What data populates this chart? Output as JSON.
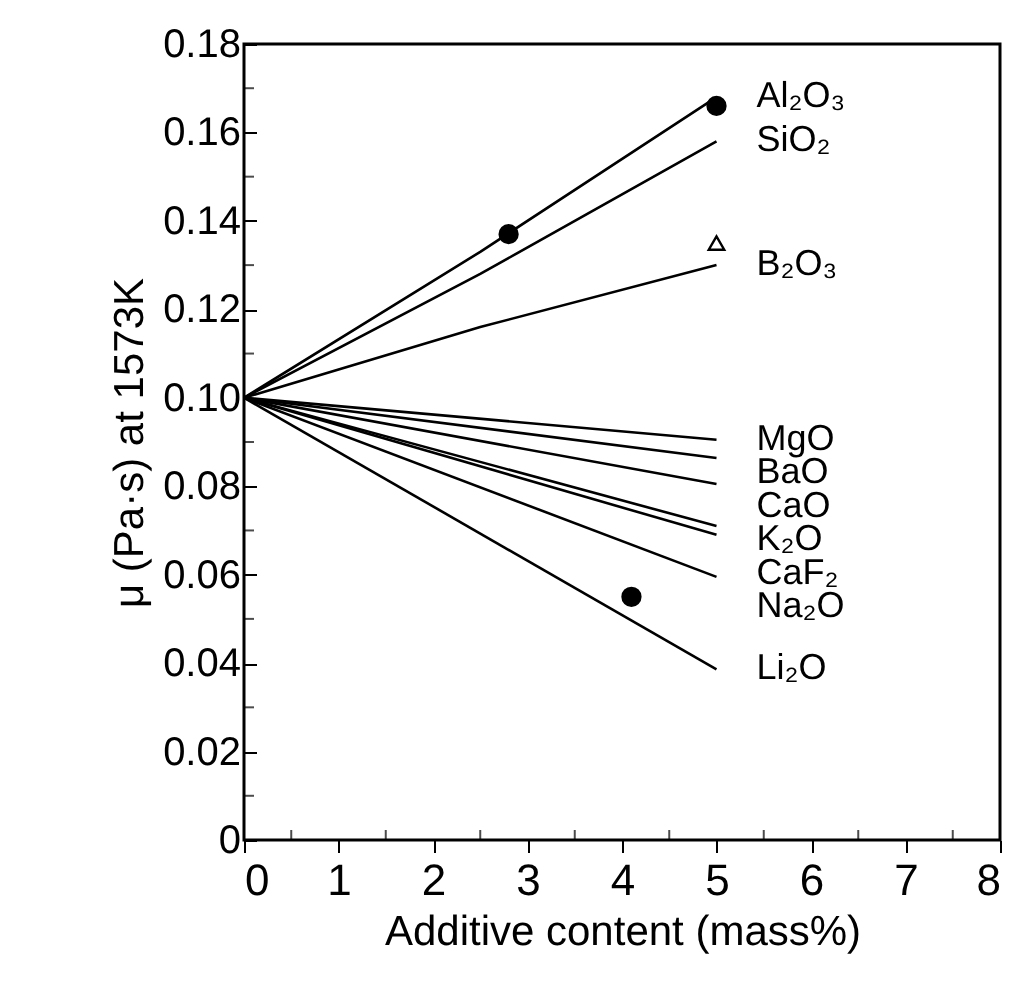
{
  "chart_data": {
    "type": "line",
    "xlabel": "Additive content (mass%)",
    "ylabel": "μ (Pa·s) at 1573K",
    "xlim": [
      0,
      8
    ],
    "ylim": [
      0,
      0.18
    ],
    "xticks": [
      0,
      {
        "value": 0.5,
        "label": null
      },
      1,
      {
        "value": 1.5,
        "label": null
      },
      2,
      {
        "value": 2.5,
        "label": null
      },
      3,
      {
        "value": 3.5,
        "label": null
      },
      4,
      {
        "value": 4.5,
        "label": null
      },
      5,
      {
        "value": 5.5,
        "label": null
      },
      6,
      {
        "value": 6.5,
        "label": null
      },
      7,
      {
        "value": 7.5,
        "label": null
      },
      8
    ],
    "yticks": [
      0,
      {
        "value": 0.01,
        "label": null
      },
      0.02,
      {
        "value": 0.03,
        "label": null
      },
      0.04,
      {
        "value": 0.05,
        "label": null
      },
      0.06,
      {
        "value": 0.07,
        "label": null
      },
      0.08,
      {
        "value": 0.09,
        "label": null
      },
      {
        "value": 0.1,
        "label": "0.10"
      },
      {
        "value": 0.11,
        "label": null
      },
      0.12,
      {
        "value": 0.13,
        "label": null
      },
      0.14,
      {
        "value": 0.15,
        "label": null
      },
      0.16,
      {
        "value": 0.17,
        "label": null
      },
      0.18
    ],
    "line_style": "solid",
    "series": [
      {
        "name": "Al₂O₃",
        "color": "#000000",
        "x": [
          0,
          2.5,
          5
        ],
        "values": [
          0.1,
          0.133,
          0.168
        ]
      },
      {
        "name": "SiO₂",
        "color": "#000000",
        "x": [
          0,
          2.5,
          5
        ],
        "values": [
          0.1,
          0.128,
          0.158
        ]
      },
      {
        "name": "B₂O₃",
        "color": "#000000",
        "x": [
          0,
          2.5,
          5
        ],
        "values": [
          0.1,
          0.116,
          0.13
        ]
      },
      {
        "name": "MgO",
        "color": "#000000",
        "x": [
          0,
          5
        ],
        "values": [
          0.1,
          0.0905
        ]
      },
      {
        "name": "BaO",
        "color": "#000000",
        "x": [
          0,
          5
        ],
        "values": [
          0.1,
          0.0864
        ]
      },
      {
        "name": "CaO",
        "color": "#000000",
        "x": [
          0,
          5
        ],
        "values": [
          0.1,
          0.0805
        ]
      },
      {
        "name": "K₂O",
        "color": "#000000",
        "x": [
          0,
          5
        ],
        "values": [
          0.1,
          0.071
        ]
      },
      {
        "name": "CaF₂",
        "color": "#000000",
        "x": [
          0,
          5
        ],
        "values": [
          0.1,
          0.069
        ]
      },
      {
        "name": "Na₂O",
        "color": "#000000",
        "x": [
          0,
          5
        ],
        "values": [
          0.1,
          0.0595
        ]
      },
      {
        "name": "Li₂O",
        "color": "#000000",
        "x": [
          0,
          5
        ],
        "values": [
          0.1,
          0.0386
        ]
      },
      {
        "type": "scatter",
        "marker": "circle",
        "color": "#000000",
        "x": [
          2.8,
          5
        ],
        "values": [
          0.137,
          0.166
        ]
      },
      {
        "type": "scatter",
        "marker": "triangle",
        "color": "#000000",
        "x": [
          5
        ],
        "values": [
          0.135
        ]
      },
      {
        "type": "scatter",
        "marker": "circle",
        "color": "#000000",
        "x": [
          4.1
        ],
        "values": [
          0.055
        ]
      }
    ]
  }
}
